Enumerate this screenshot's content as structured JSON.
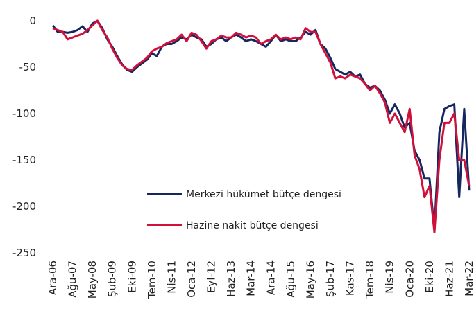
{
  "chart_data": {
    "type": "line",
    "categories": [
      "Ara-06",
      null,
      null,
      null,
      "Ağu-07",
      null,
      null,
      null,
      "May-08",
      null,
      null,
      null,
      "Şub-09",
      null,
      null,
      null,
      "Eki-09",
      null,
      null,
      null,
      "Tem-10",
      null,
      null,
      null,
      "Nis-11",
      null,
      null,
      null,
      "Oca-12",
      null,
      null,
      null,
      "Eyl-12",
      null,
      null,
      null,
      "Haz-13",
      null,
      null,
      null,
      "Mar-14",
      null,
      null,
      null,
      "Ara-14",
      null,
      null,
      null,
      "Ağu-15",
      null,
      null,
      null,
      "May-16",
      null,
      null,
      null,
      "Şub-17",
      null,
      null,
      null,
      "Kas-17",
      null,
      null,
      null,
      "Tem-18",
      null,
      null,
      null,
      "Nis-19",
      null,
      null,
      null,
      "Oca-20",
      null,
      null,
      null,
      "Eki-20",
      null,
      null,
      null,
      "Haz-21",
      null,
      null,
      null,
      "Mar-22"
    ],
    "series": [
      {
        "name": "Merkezi hükümet bütçe dengesi",
        "color": "#14285f",
        "values": [
          -5,
          -12,
          -12,
          -13,
          -12,
          -10,
          -6,
          -12,
          -3,
          0,
          -8,
          -20,
          -28,
          -38,
          -47,
          -53,
          -55,
          -50,
          -46,
          -42,
          -35,
          -38,
          -28,
          -25,
          -25,
          -22,
          -18,
          -20,
          -15,
          -18,
          -20,
          -28,
          -25,
          -20,
          -18,
          -22,
          -18,
          -15,
          -18,
          -22,
          -20,
          -22,
          -25,
          -28,
          -22,
          -15,
          -22,
          -20,
          -22,
          -22,
          -18,
          -12,
          -15,
          -10,
          -25,
          -30,
          -40,
          -52,
          -55,
          -58,
          -55,
          -60,
          -58,
          -68,
          -72,
          -70,
          -75,
          -85,
          -100,
          -90,
          -100,
          -115,
          -110,
          -140,
          -150,
          -170,
          -170,
          -225,
          -120,
          -95,
          -92,
          -90,
          -190,
          -95,
          -183
        ]
      },
      {
        "name": "Hazine nakit bütçe dengesi",
        "color": "#d0103a",
        "values": [
          -8,
          -10,
          -12,
          -20,
          -18,
          -16,
          -14,
          -10,
          -5,
          0,
          -10,
          -18,
          -30,
          -40,
          -48,
          -52,
          -53,
          -48,
          -44,
          -40,
          -33,
          -30,
          -28,
          -24,
          -22,
          -20,
          -15,
          -22,
          -13,
          -15,
          -22,
          -30,
          -22,
          -20,
          -16,
          -18,
          -18,
          -13,
          -15,
          -18,
          -16,
          -18,
          -25,
          -22,
          -20,
          -15,
          -20,
          -18,
          -20,
          -18,
          -20,
          -8,
          -12,
          -12,
          -25,
          -35,
          -45,
          -62,
          -60,
          -62,
          -58,
          -60,
          -62,
          -68,
          -75,
          -70,
          -78,
          -88,
          -110,
          -100,
          -110,
          -120,
          -95,
          -145,
          -160,
          -190,
          -178,
          -228,
          -150,
          -110,
          -110,
          -100,
          -150,
          -150,
          -178
        ]
      }
    ],
    "ylim": [
      -250,
      0
    ],
    "yticks": [
      0,
      -50,
      -100,
      -150,
      -200,
      -250
    ],
    "grid": false
  }
}
